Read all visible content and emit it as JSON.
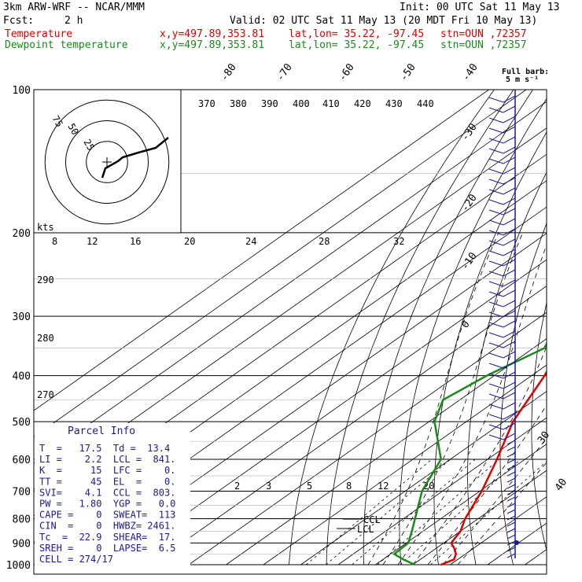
{
  "header": {
    "title": "3km ARW-WRF -- NCAR/MMM",
    "init": "Init: 00 UTC Sat 11 May 13",
    "fcst_label": "Fcst:",
    "fcst_value": "2 h",
    "valid": "Valid: 02 UTC Sat 11 May 13 (20 MDT Fri 10 May 13)",
    "temp_line": {
      "label": "Temperature",
      "xy": "x,y=497.89,353.81",
      "latlon": "lat,lon= 35.22, -97.45",
      "stn": "stn=OUN ,72357"
    },
    "dew_line": {
      "label": "Dewpoint temperature",
      "xy": "x,y=497.89,353.81",
      "latlon": "lat,lon= 35.22, -97.45",
      "stn": "stn=OUN ,72357"
    }
  },
  "barb_legend": {
    "line1": "Full barb:",
    "line2": "5 m s⁻¹"
  },
  "hodograph": {
    "ring_labels": [
      "75",
      "50",
      "25"
    ],
    "units": "kts"
  },
  "chart_data": {
    "type": "line",
    "plot": "skew-T log-p sounding",
    "pressure_ticks": [
      100,
      200,
      300,
      400,
      500,
      600,
      700,
      800,
      900,
      1000
    ],
    "pressure_range_hPa": [
      100,
      1000
    ],
    "isotherm_labels_top": [
      "-80",
      "-70",
      "-60",
      "-50",
      "-40"
    ],
    "isotherm_labels_right": [
      "-30",
      "-20",
      "-10",
      "0"
    ],
    "theta_labels": [
      "370",
      "380",
      "390",
      "400",
      "410",
      "420",
      "430",
      "440"
    ],
    "theta_labels_left": [
      "290",
      "280",
      "270"
    ],
    "mixing_ratio_labels_upper": [
      "8",
      "12",
      "16",
      "20",
      "24",
      "28",
      "32"
    ],
    "mixing_ratio_labels_lower": [
      "2",
      "3",
      "5",
      "8",
      "12",
      "20"
    ],
    "isotherm_labels_lower_right": [
      "30",
      "40"
    ],
    "series": [
      {
        "name": "Temperature",
        "color": "#e00000",
        "points": [
          {
            "p": 1000,
            "t": 27.5
          },
          {
            "p": 975,
            "t": 29.0
          },
          {
            "p": 950,
            "t": 27.5
          },
          {
            "p": 925,
            "t": 25.0
          },
          {
            "p": 900,
            "t": 22.0
          },
          {
            "p": 850,
            "t": 20.0
          },
          {
            "p": 800,
            "t": 16.5
          },
          {
            "p": 700,
            "t": 10.5
          },
          {
            "p": 600,
            "t": 2.5
          },
          {
            "p": 500,
            "t": -7.5
          },
          {
            "p": 400,
            "t": -16.5
          },
          {
            "p": 300,
            "t": -30.5
          },
          {
            "p": 250,
            "t": -39.5
          },
          {
            "p": 225,
            "t": -45.0
          },
          {
            "p": 200,
            "t": -52.5
          },
          {
            "p": 175,
            "t": -57.5
          },
          {
            "p": 150,
            "t": -63.0
          },
          {
            "p": 125,
            "t": -68.0
          },
          {
            "p": 100,
            "t": -72.0
          }
        ]
      },
      {
        "name": "Dewpoint temperature",
        "color": "#1a8a1a",
        "points": [
          {
            "p": 1000,
            "t": 20.5
          },
          {
            "p": 975,
            "t": 15.5
          },
          {
            "p": 950,
            "t": 11.0
          },
          {
            "p": 900,
            "t": 10.5
          },
          {
            "p": 850,
            "t": 7.0
          },
          {
            "p": 700,
            "t": -5.5
          },
          {
            "p": 600,
            "t": -12.5
          },
          {
            "p": 500,
            "t": -28.5
          },
          {
            "p": 450,
            "t": -34.5
          },
          {
            "p": 400,
            "t": -32.0
          },
          {
            "p": 350,
            "t": -27.0
          },
          {
            "p": 320,
            "t": -31.5
          },
          {
            "p": 300,
            "t": -38.0
          },
          {
            "p": 250,
            "t": -48.0
          },
          {
            "p": 200,
            "t": -63.5
          },
          {
            "p": 175,
            "t": -72.0
          },
          {
            "p": 150,
            "t": -82.0
          },
          {
            "p": 130,
            "t": -92.0
          },
          {
            "p": 110,
            "t": -101.0
          },
          {
            "p": 100,
            "t": -105.5
          }
        ]
      }
    ],
    "annotations": [
      "CCL",
      "LCL"
    ]
  },
  "parcel_info": {
    "title": "Parcel Info",
    "rows": [
      "T  =   17.5  Td =  13.4",
      "LI =    2.2  LCL =  841.",
      "K  =     15  LFC =    0.",
      "TT =     45  EL  =    0.",
      "SVI=    4.1  CCL =  803.",
      "PW =   1.80  YGP =   0.0",
      "CAPE =    0  SWEAT=  113",
      "CIN  =    0  HWBZ= 2461.",
      "Tc  =  22.9  SHEAR=  17.",
      "SREH =    0  LAPSE=  6.5",
      "CELL = 274/17"
    ]
  }
}
